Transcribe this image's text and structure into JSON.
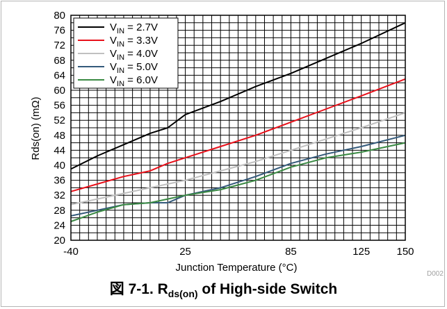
{
  "chart_data": {
    "type": "line",
    "xlabel": "Junction Temperature (°C)",
    "ylabel": "Rds(on) (mΩ)",
    "xlim": [
      -40,
      150
    ],
    "ylim": [
      20,
      80
    ],
    "x_ticks": [
      -40,
      25,
      85,
      125,
      150
    ],
    "x_tick_labels": [
      "-40",
      "25",
      "85",
      "125",
      "150"
    ],
    "y_ticks": [
      20,
      24,
      28,
      32,
      36,
      40,
      44,
      48,
      52,
      56,
      60,
      64,
      68,
      72,
      76,
      80
    ],
    "y_tick_labels": [
      "20",
      "24",
      "28",
      "32",
      "36",
      "40",
      "44",
      "48",
      "52",
      "56",
      "60",
      "64",
      "68",
      "72",
      "76",
      "80"
    ],
    "grid": true,
    "legend_position": "top-left",
    "series": [
      {
        "name_main": "V",
        "name_sub": "IN",
        "name_rest": " = 2.7V",
        "color": "#000000",
        "x": [
          -40,
          -25,
          -10,
          5,
          15,
          25,
          45,
          65,
          85,
          105,
          125,
          150
        ],
        "y": [
          39,
          42.5,
          45.5,
          48.5,
          50,
          53.5,
          57,
          61,
          64.5,
          68.5,
          72.5,
          78
        ]
      },
      {
        "name_main": "V",
        "name_sub": "IN",
        "name_rest": " = 3.3V",
        "color": "#e8101a",
        "x": [
          -40,
          -25,
          -10,
          5,
          15,
          25,
          45,
          65,
          85,
          105,
          125,
          150
        ],
        "y": [
          33,
          35,
          37,
          38.5,
          40.5,
          42,
          45,
          48,
          51.5,
          55,
          58.5,
          63
        ]
      },
      {
        "name_main": "V",
        "name_sub": "IN",
        "name_rest": " = 4.0V",
        "color": "#c0c0c0",
        "x": [
          -40,
          -25,
          -10,
          5,
          15,
          25,
          45,
          65,
          85,
          105,
          125,
          150
        ],
        "y": [
          29.5,
          31,
          32.5,
          34,
          35,
          36,
          38.5,
          41,
          44,
          47,
          50,
          54
        ]
      },
      {
        "name_main": "V",
        "name_sub": "IN",
        "name_rest": " = 5.0V",
        "color": "#33597a",
        "x": [
          -40,
          -25,
          -10,
          5,
          15,
          25,
          45,
          65,
          85,
          105,
          125,
          150
        ],
        "y": [
          26.5,
          28,
          29.5,
          30,
          30,
          32,
          34,
          37,
          40.5,
          43,
          45,
          48
        ]
      },
      {
        "name_main": "V",
        "name_sub": "IN",
        "name_rest": " = 6.0V",
        "color": "#3a8a43",
        "x": [
          -40,
          -25,
          -10,
          5,
          15,
          25,
          45,
          65,
          85,
          105,
          125,
          150
        ],
        "y": [
          25,
          27.5,
          29.5,
          30,
          31,
          32,
          33.5,
          36,
          39.5,
          42,
          43.5,
          46
        ]
      }
    ]
  },
  "figure_code": "D002",
  "caption": {
    "prefix": "図 7-1. R",
    "sub": "ds(on)",
    "suffix": " of High-side Switch"
  }
}
